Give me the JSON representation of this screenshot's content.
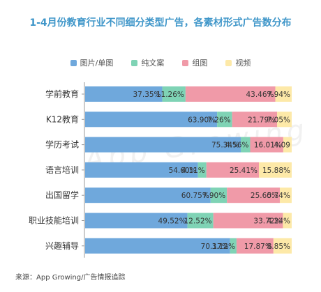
{
  "colors": {
    "title": "#3f96c9",
    "series": [
      "#6fa8dc",
      "#7fd3b5",
      "#f09aa8",
      "#fde9a8"
    ]
  },
  "chart_data": {
    "type": "bar",
    "orientation": "horizontal-stacked-100",
    "title": "1-4月份教育行业不同细分类型广告，各素材形式广告数分布",
    "categories": [
      "学前教育",
      "K12教育",
      "学历考试",
      "语言培训",
      "出国留学",
      "职业技能培训",
      "兴趣辅导"
    ],
    "series": [
      {
        "name": "图片/单图",
        "values": [
          37.35,
          63.9,
          75.34,
          54.6,
          60.75,
          49.52,
          70.17
        ],
        "labels": [
          "37.35%",
          "63.90%",
          "75.34%",
          "54.60%",
          "60.75%",
          "49.52%",
          "70.17%"
        ]
      },
      {
        "name": "纯文案",
        "values": [
          11.26,
          7.26,
          4.56,
          4.11,
          7.9,
          12.52,
          3.12
        ],
        "labels": [
          "11.26%",
          "7.26%",
          "4.56%",
          "4.11%",
          "7.90%",
          "12.52%",
          "3.12%"
        ]
      },
      {
        "name": "组图",
        "values": [
          43.46,
          21.79,
          16.01,
          25.41,
          25.6,
          33.72,
          17.87
        ],
        "labels": [
          "43.46%",
          "21.79%",
          "16.01%",
          "25.41%",
          "25.60%",
          "33.72%",
          "17.87%"
        ]
      },
      {
        "name": "视频",
        "values": [
          7.94,
          7.05,
          4.09,
          15.88,
          5.74,
          4.24,
          8.85
        ],
        "labels": [
          "7.94%",
          "7.05%",
          "4.09",
          "15.88%",
          "5.74%",
          "4.24%",
          "8.85%"
        ]
      }
    ],
    "xlim": [
      0,
      100
    ],
    "legend": "top",
    "grid": false
  },
  "source": "来源：App Growing/广告情报追踪",
  "watermark": "App Growing"
}
